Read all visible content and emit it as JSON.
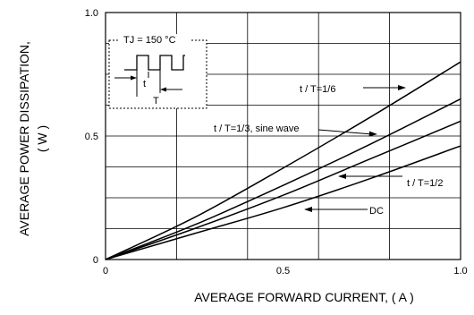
{
  "chart_data": {
    "type": "line",
    "xlabel": "AVERAGE FORWARD CURRENT, ( A )",
    "ylabel_line1": "AVERAGE POWER DISSIPATION,",
    "ylabel_line2": "( W )",
    "xlim": [
      0,
      1.0
    ],
    "ylim": [
      0,
      1.0
    ],
    "x_ticks": [
      {
        "value": 0,
        "label": "0"
      },
      {
        "value": 0.5,
        "label": "0.5"
      },
      {
        "value": 1.0,
        "label": "1.0"
      }
    ],
    "y_ticks": [
      {
        "value": 0,
        "label": "0"
      },
      {
        "value": 0.5,
        "label": "0.5"
      },
      {
        "value": 1.0,
        "label": "1.0"
      }
    ],
    "grid": true,
    "series": [
      {
        "name": "t / T=1/6",
        "x": [
          0,
          0.25,
          0.5,
          0.75,
          1.0
        ],
        "y": [
          0,
          0.17,
          0.37,
          0.58,
          0.8
        ]
      },
      {
        "name": "t / T=1/3, sine wave",
        "x": [
          0,
          0.25,
          0.5,
          0.75,
          1.0
        ],
        "y": [
          0,
          0.14,
          0.3,
          0.47,
          0.65
        ]
      },
      {
        "name": "t / T=1/2",
        "x": [
          0,
          0.25,
          0.5,
          0.75,
          1.0
        ],
        "y": [
          0,
          0.125,
          0.26,
          0.41,
          0.56
        ]
      },
      {
        "name": "DC",
        "x": [
          0,
          0.25,
          0.5,
          0.75,
          1.0
        ],
        "y": [
          0,
          0.105,
          0.21,
          0.33,
          0.46
        ]
      }
    ],
    "inset": {
      "title": "TJ = 150 °C",
      "t_label": "t",
      "T_label": "T"
    }
  }
}
